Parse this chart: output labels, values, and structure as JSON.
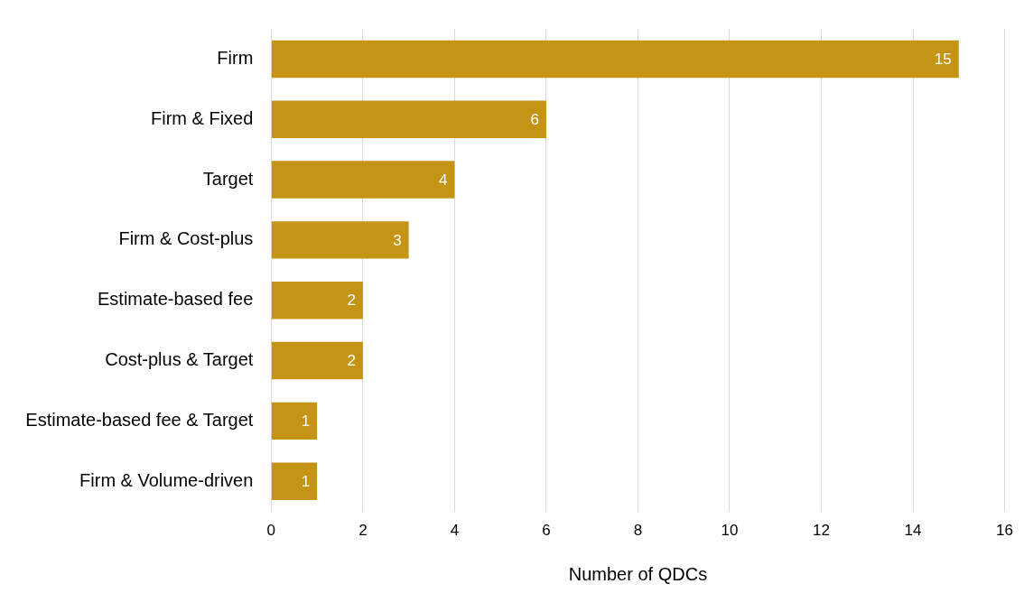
{
  "chart_data": {
    "type": "bar",
    "orientation": "horizontal",
    "xlabel": "Number of QDCs",
    "categories": [
      "Firm",
      "Firm & Fixed",
      "Target",
      "Firm & Cost-plus",
      "Estimate-based fee",
      "Cost-plus & Target",
      "Estimate-based fee & Target",
      "Firm & Volume-driven"
    ],
    "values": [
      15,
      6,
      4,
      3,
      2,
      2,
      1,
      1
    ],
    "color": "#c59414",
    "xlim": [
      0,
      16
    ],
    "xticks": [
      0,
      2,
      4,
      6,
      8,
      10,
      12,
      14,
      16
    ],
    "grid": "x",
    "data_labels": true,
    "legend": false
  }
}
